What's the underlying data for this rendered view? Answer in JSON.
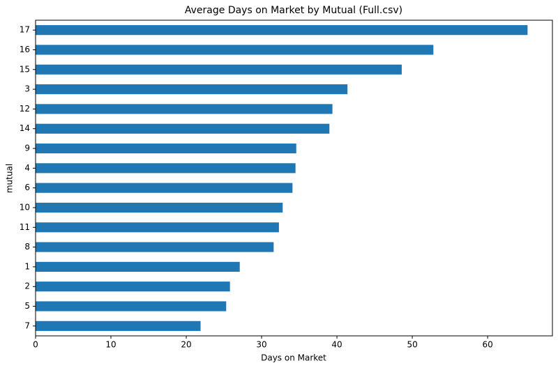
{
  "chart_data": {
    "type": "barh",
    "title": "Average Days on Market by Mutual (Full.csv)",
    "xlabel": "Days on Market",
    "ylabel": "mutual",
    "categories": [
      "17",
      "16",
      "15",
      "3",
      "12",
      "14",
      "9",
      "4",
      "6",
      "10",
      "11",
      "8",
      "1",
      "2",
      "5",
      "7"
    ],
    "values": [
      65.3,
      52.8,
      48.6,
      41.4,
      39.4,
      39.0,
      34.6,
      34.5,
      34.1,
      32.8,
      32.3,
      31.6,
      27.1,
      25.8,
      25.3,
      21.9
    ],
    "color": "#1f77b4",
    "xlim": [
      0,
      68.6
    ],
    "xticks": [
      0,
      10,
      20,
      30,
      40,
      50,
      60
    ]
  }
}
